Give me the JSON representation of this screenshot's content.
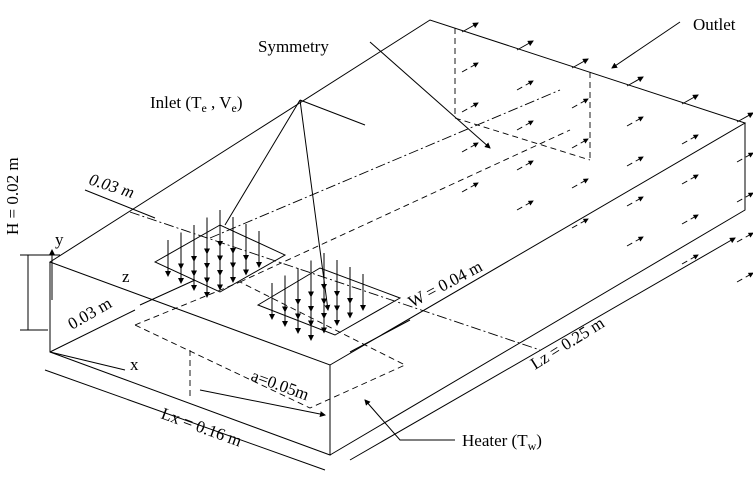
{
  "labels": {
    "symmetry": "Symmetry",
    "outlet": "Outlet",
    "inlet": {
      "text": "Inlet (T",
      "sub1": "e",
      "sep": " , V",
      "sub2": "e",
      "close": ")"
    },
    "inlet_gap": "0.03 m",
    "height": "H = 0.02 m",
    "axis_y": "y",
    "axis_z": "z",
    "axis_x": "x",
    "origin_offset": "0.03 m",
    "width": "W = 0.04 m",
    "length_z": "Lz = 0.25 m",
    "length_x": "Lx = 0.16 m",
    "heater_offset": "a=0.05m",
    "heater": {
      "text": "Heater (T",
      "sub": "w",
      "close": ")"
    }
  }
}
